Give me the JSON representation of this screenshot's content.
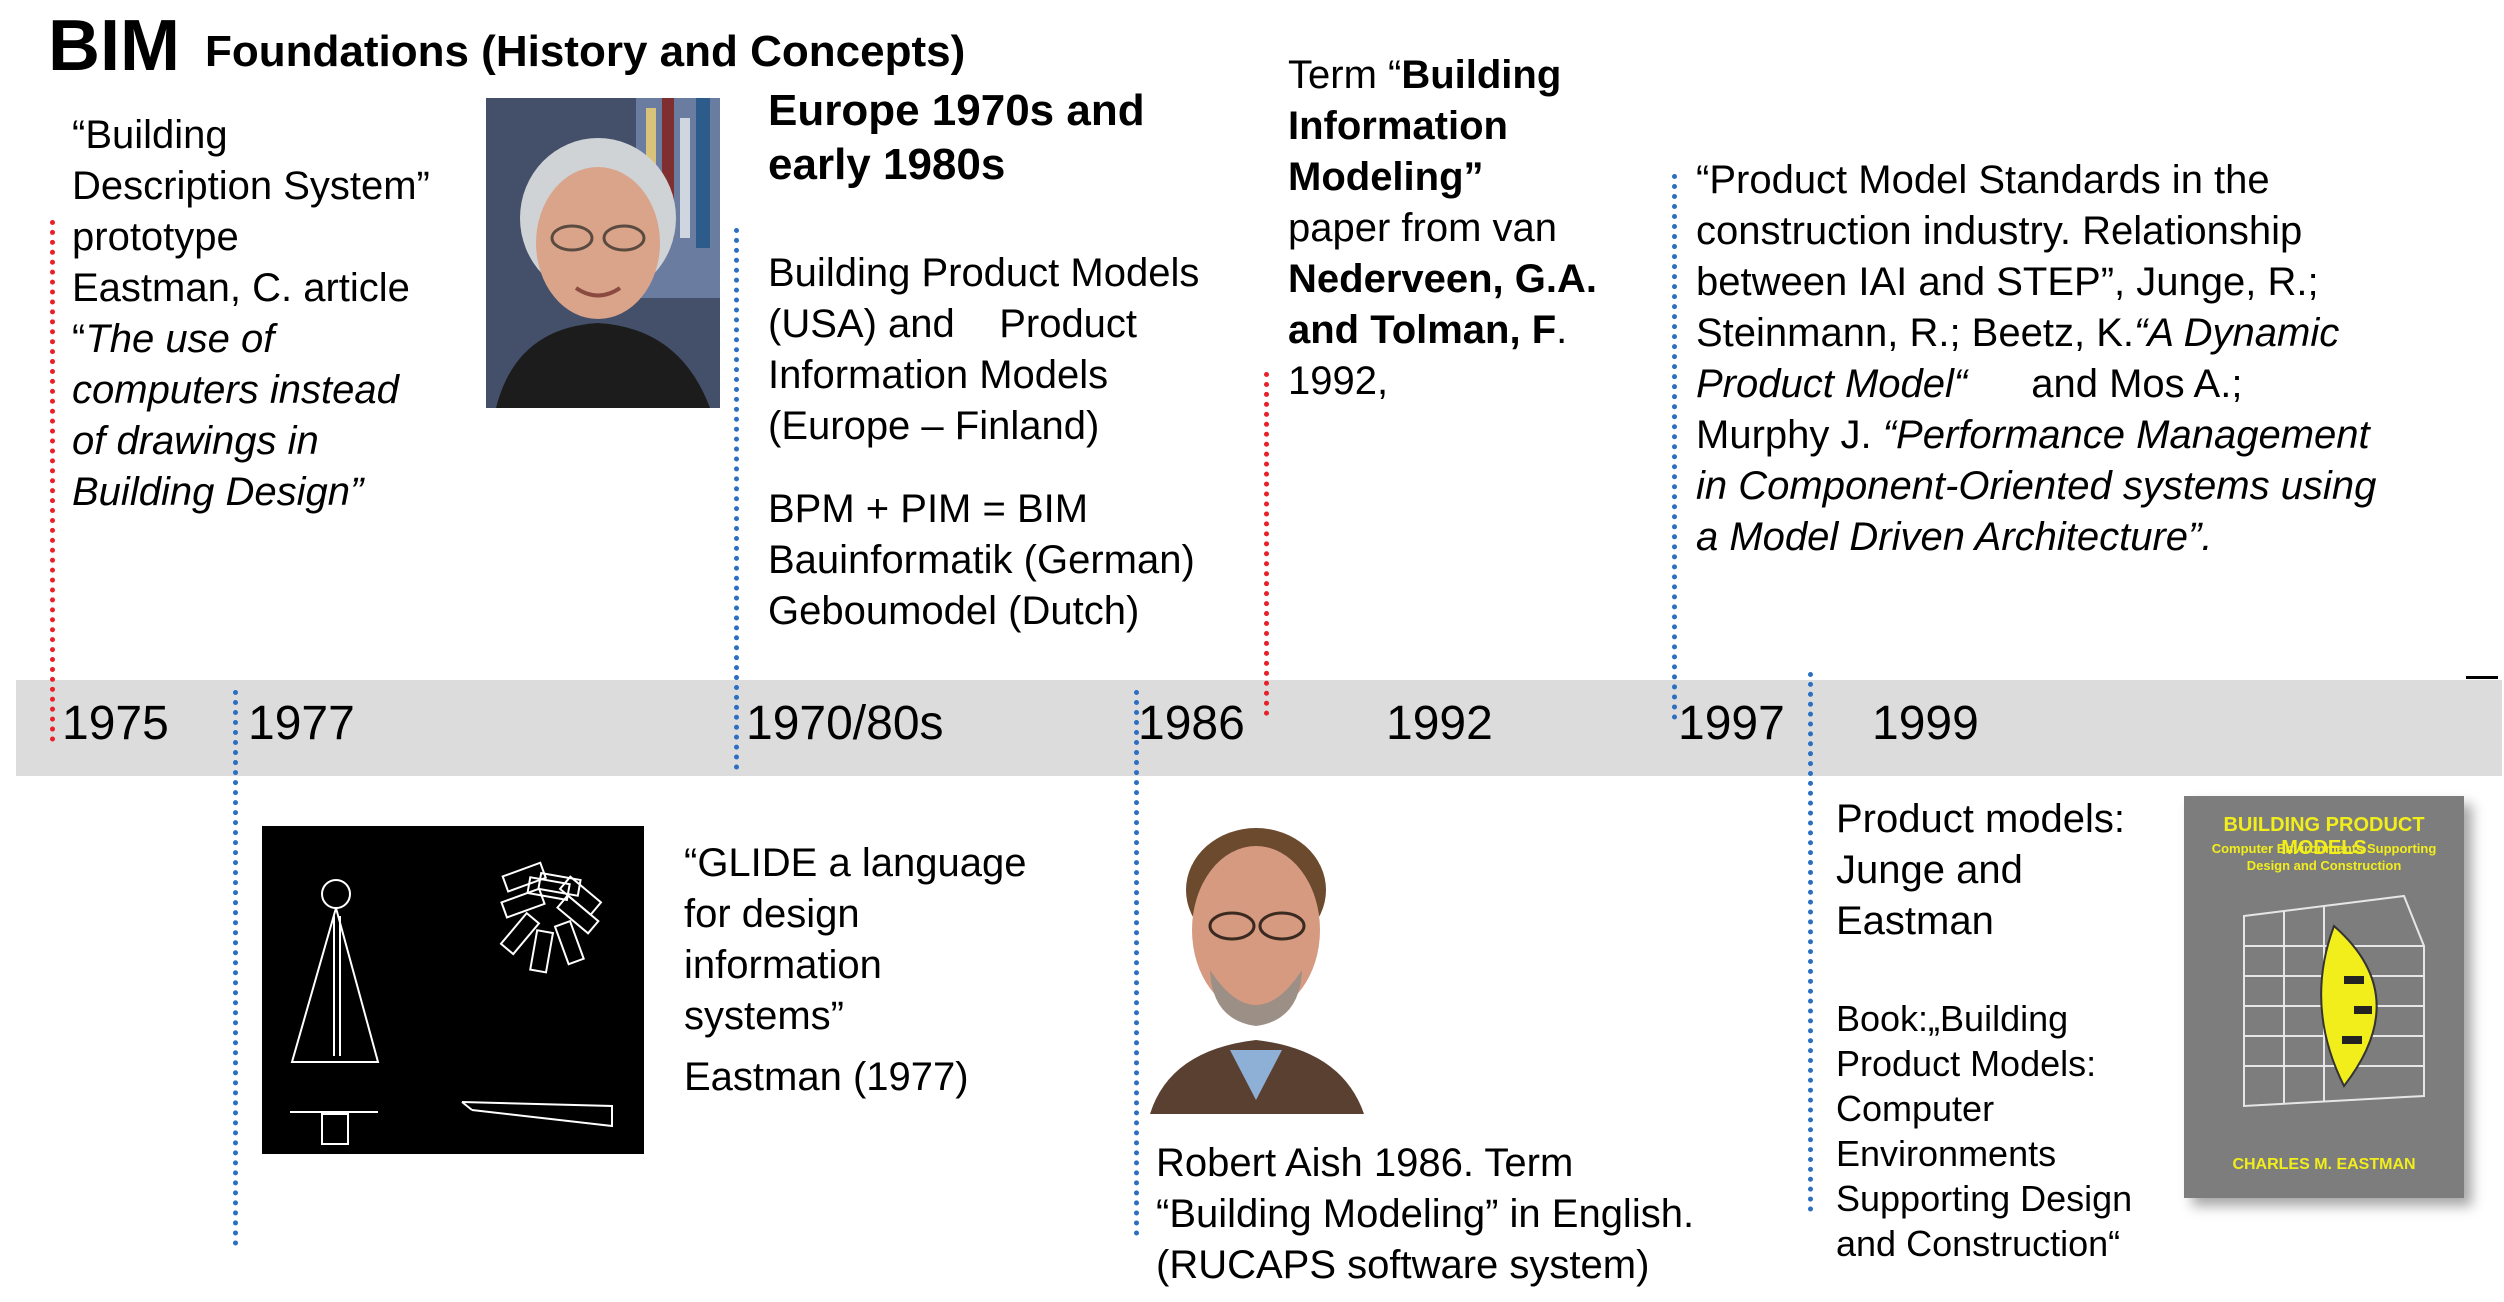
{
  "title": {
    "main": "BIM",
    "sub": "Foundations (History and Concepts)"
  },
  "timeline": {
    "years": [
      "1975",
      "1977",
      "1970/80s",
      "1986",
      "1992",
      "1997",
      "1999"
    ]
  },
  "events": {
    "e1975": {
      "l1": "“Building",
      "l2": "Description System”",
      "l3": "prototype",
      "l4": "Eastman, C. article",
      "l5a": "“",
      "l5b": "The use of",
      "l6": "computers instead",
      "l7": "of drawings in",
      "l8": "Building Design”"
    },
    "e1977": {
      "l1": "“GLIDE a language",
      "l2": "for design",
      "l3": "information",
      "l4": "systems”",
      "l5": "Eastman (1977)"
    },
    "europe": {
      "h1": "Europe 1970s and",
      "h2": "early 1980s",
      "l1": "Building Product Models",
      "l2": "(USA) and    Product",
      "l3": "Information Models",
      "l4": "(Europe – Finland)",
      "l5": "BPM + PIM = BIM",
      "l6": "Bauinformatik (German)",
      "l7": "Geboumodel (Dutch)"
    },
    "e1986": {
      "l1": "Robert Aish 1986. Term",
      "l2": "“Building Modeling” in English.",
      "l3": "(RUCAPS software system)"
    },
    "e1992": {
      "l1a": "Term “",
      "l1b": "Building",
      "l2": "Information",
      "l3": "Modeling”",
      "l4": "paper from van",
      "l5": "Nederveen, G.A.",
      "l6a": "and Tolman, F",
      "l6b": ".",
      "l7": "1992,"
    },
    "e1997": {
      "l1": "“Product Model Standards in the",
      "l2": "construction industry. Relationship",
      "l3": "between IAI and STEP”, Junge, R.;",
      "l4a": "Steinmann, R.; Beetz, K.",
      "l4b": "“A Dynamic",
      "l5a": "Product Model“",
      "l5b": "and Mos A.;",
      "l6a": "Murphy J. ",
      "l6b": "“Performance Management",
      "l7": "in Component-Oriented systems using",
      "l8": "a Model Driven Architecture”."
    },
    "e1999": {
      "l1": "Product models:",
      "l2": "Junge and",
      "l3": "Eastman",
      "b1": "Book:„Building",
      "b2": "Product Models:",
      "b3": "Computer",
      "b4": "Environments",
      "b5": "Supporting Design",
      "b6": "and Construction“"
    }
  },
  "book_cover": {
    "title": "BUILDING PRODUCT MODELS",
    "sub1": "Computer Environments Supporting",
    "sub2": "Design and Construction",
    "author": "CHARLES M. EASTMAN"
  },
  "colors": {
    "red_marker": "#e8202a",
    "blue_marker": "#2a6fc2",
    "band": "#dcdcdc",
    "cover_yellow": "#f2ee1c"
  }
}
